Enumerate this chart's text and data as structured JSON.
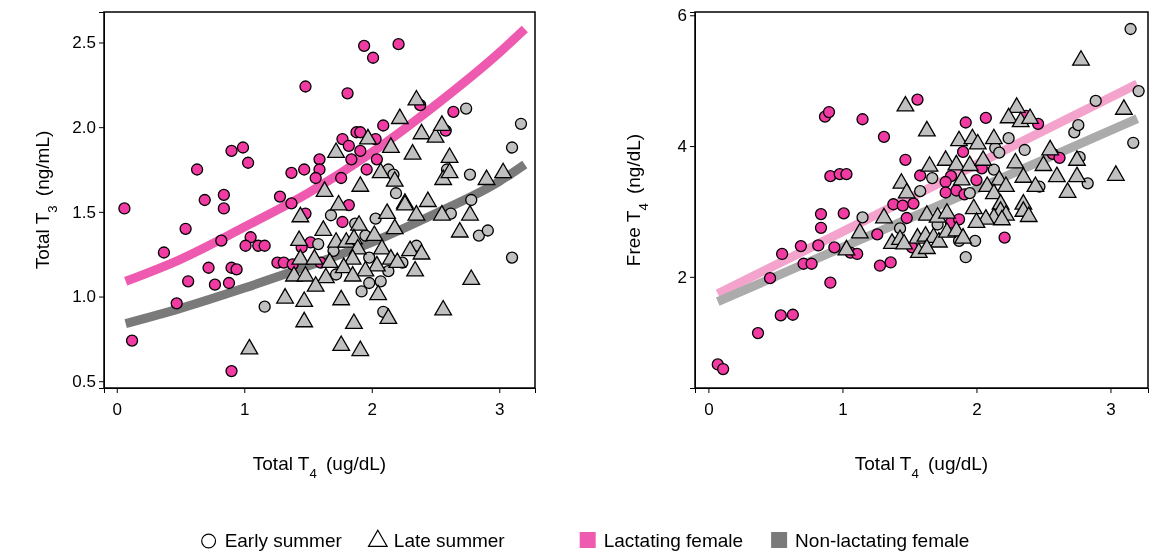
{
  "chart_data": [
    {
      "type": "scatter",
      "xlabel": "Total T$_{4}$ (ug/dL)",
      "ylabel": "Total T$_{3}$ (ng/mL)",
      "xlim": [
        -0.1,
        3.28
      ],
      "ylim": [
        0.46,
        2.68
      ],
      "xticks": [
        0,
        1,
        2,
        3
      ],
      "yticks": [
        {
          "value": 0.5,
          "label": "0.5"
        },
        {
          "value": 1.0,
          "label": "1.0"
        },
        {
          "value": 1.5,
          "label": "1.5"
        },
        {
          "value": 2.0,
          "label": "2.0"
        },
        {
          "value": 2.5,
          "label": "2.5"
        }
      ],
      "legend": "bottom",
      "series": [
        {
          "name": "Early summer",
          "marker": "circle",
          "x": [
            1.94,
            2.21,
            2.01,
            1.48,
            1.81,
            2.38,
            2.64,
            2.58,
            2.09,
            1.88,
            1.91,
            2.03,
            1.77,
            1.82,
            1.91,
            0.9,
            0.99,
            1.03,
            1.59,
            1.84,
            2.04,
            0.63,
            1.47,
            1.59,
            1.37,
            1.56,
            1.76,
            1.96,
            0.69,
            0.84,
            1.28,
            1.37,
            0.06,
            0.84,
            1.82,
            1.48,
            1.77,
            0.54,
            1.05,
            1.01,
            1.11,
            1.16,
            0.82,
            1.52,
            1.45,
            0.37,
            1.26,
            1.31,
            1.38,
            1.6,
            0.72,
            0.9,
            0.94,
            0.56,
            0.77,
            0.88,
            0.47,
            0.12,
            0.9,
            2.74,
            2.13,
            2.17,
            2.77,
            2.59,
            2.19,
            2.78,
            1.68,
            2.03,
            2.62,
            2.84,
            2.91,
            1.87,
            1.95,
            1.58,
            1.7,
            1.98,
            2.13,
            1.72,
            1.98,
            2.07,
            1.92,
            1.16,
            2.09,
            2.35,
            2.24,
            3.17,
            3.1,
            3.1
          ],
          "values": [
            2.48,
            2.49,
            2.41,
            2.24,
            2.2,
            2.13,
            2.09,
            1.98,
            2.01,
            1.97,
            1.97,
            1.93,
            1.93,
            1.89,
            1.86,
            1.86,
            1.88,
            1.79,
            1.81,
            1.81,
            1.81,
            1.75,
            1.75,
            1.75,
            1.73,
            1.7,
            1.7,
            1.75,
            1.57,
            1.6,
            1.59,
            1.55,
            1.52,
            1.52,
            1.54,
            1.49,
            1.44,
            1.4,
            1.35,
            1.3,
            1.3,
            1.3,
            1.33,
            1.32,
            1.29,
            1.26,
            1.2,
            1.2,
            1.19,
            1.2,
            1.17,
            1.17,
            1.16,
            1.09,
            1.07,
            1.08,
            0.96,
            0.74,
            0.56,
            2.11,
            1.75,
            1.72,
            1.72,
            1.75,
            1.61,
            1.57,
            1.48,
            1.46,
            1.49,
            1.36,
            1.39,
            1.43,
            1.36,
            1.31,
            1.27,
            1.23,
            1.15,
            1.13,
            1.08,
            1.09,
            1.03,
            0.94,
            0.91,
            1.3,
            1.2,
            2.02,
            1.88,
            1.23
          ],
          "colors": [
            "#f23aa3",
            "#f23aa3",
            "#f23aa3",
            "#f23aa3",
            "#f23aa3",
            "#f23aa3",
            "#f23aa3",
            "#f23aa3",
            "#f23aa3",
            "#f23aa3",
            "#f23aa3",
            "#f23aa3",
            "#f23aa3",
            "#f23aa3",
            "#f23aa3",
            "#f23aa3",
            "#f23aa3",
            "#f23aa3",
            "#f23aa3",
            "#f23aa3",
            "#f23aa3",
            "#f23aa3",
            "#f23aa3",
            "#f23aa3",
            "#f23aa3",
            "#f23aa3",
            "#f23aa3",
            "#f23aa3",
            "#f23aa3",
            "#f23aa3",
            "#f23aa3",
            "#f23aa3",
            "#f23aa3",
            "#f23aa3",
            "#f23aa3",
            "#f23aa3",
            "#f23aa3",
            "#f23aa3",
            "#f23aa3",
            "#f23aa3",
            "#f23aa3",
            "#f23aa3",
            "#f23aa3",
            "#f23aa3",
            "#f23aa3",
            "#f23aa3",
            "#f23aa3",
            "#f23aa3",
            "#f23aa3",
            "#f23aa3",
            "#f23aa3",
            "#f23aa3",
            "#f23aa3",
            "#f23aa3",
            "#f23aa3",
            "#f23aa3",
            "#f23aa3",
            "#f23aa3",
            "#f23aa3",
            "#c0c0c0",
            "#c0c0c0",
            "#c0c0c0",
            "#c0c0c0",
            "#c0c0c0",
            "#c0c0c0",
            "#c0c0c0",
            "#c0c0c0",
            "#c0c0c0",
            "#c0c0c0",
            "#c0c0c0",
            "#c0c0c0",
            "#c0c0c0",
            "#c0c0c0",
            "#c0c0c0",
            "#c0c0c0",
            "#c0c0c0",
            "#c0c0c0",
            "#c0c0c0",
            "#c0c0c0",
            "#c0c0c0",
            "#c0c0c0",
            "#c0c0c0",
            "#c0c0c0",
            "#c0c0c0",
            "#c0c0c0",
            "#c0c0c0",
            "#c0c0c0",
            "#c0c0c0"
          ]
        },
        {
          "name": "Late summer",
          "marker": "triangle",
          "color": "#c0c0c0",
          "x": [
            2.35,
            2.22,
            1.97,
            2.15,
            2.39,
            2.5,
            2.55,
            1.72,
            2.32,
            2.61,
            2.07,
            2.18,
            2.56,
            2.61,
            1.91,
            1.63,
            2.26,
            2.44,
            1.74,
            1.44,
            2.12,
            2.26,
            2.35,
            2.55,
            2.77,
            1.62,
            1.9,
            2.02,
            2.18,
            2.69,
            1.43,
            1.72,
            1.8,
            1.86,
            1.89,
            2.08,
            2.3,
            2.39,
            1.44,
            1.55,
            1.67,
            1.85,
            2.04,
            2.15,
            2.2,
            1.78,
            1.95,
            2.34,
            1.39,
            1.48,
            1.64,
            1.85,
            2.78,
            1.56,
            2.05,
            1.32,
            1.47,
            1.76,
            2.56,
            2.13,
            1.47,
            1.86,
            1.04,
            1.76,
            1.91,
            3.03,
            2.9
          ],
          "values": [
            2.16,
            2.05,
            1.93,
            1.88,
            1.96,
            1.94,
            2.01,
            1.85,
            1.84,
            1.82,
            1.73,
            1.68,
            1.69,
            1.73,
            1.65,
            1.62,
            1.55,
            1.56,
            1.54,
            1.47,
            1.49,
            1.54,
            1.48,
            1.48,
            1.48,
            1.39,
            1.42,
            1.36,
            1.4,
            1.38,
            1.33,
            1.32,
            1.32,
            1.34,
            1.28,
            1.28,
            1.27,
            1.25,
            1.22,
            1.22,
            1.2,
            1.22,
            1.18,
            1.22,
            1.2,
            1.17,
            1.15,
            1.15,
            1.12,
            1.12,
            1.11,
            1.12,
            1.1,
            1.06,
            1.01,
            0.99,
            0.97,
            0.98,
            0.92,
            0.87,
            0.85,
            0.84,
            0.69,
            0.71,
            0.68,
            1.73,
            1.69
          ]
        },
        {
          "name": "Lactating female",
          "type": "line",
          "color": "#ee5aaf",
          "x": [
            0.07,
            0.5,
            1,
            1.5,
            2,
            2.5,
            3,
            3.2
          ],
          "values": [
            1.09,
            1.22,
            1.41,
            1.61,
            1.85,
            2.13,
            2.44,
            2.58
          ]
        },
        {
          "name": "Non-lactating female",
          "type": "line",
          "color": "#7a7a7a",
          "x": [
            0.07,
            0.5,
            1,
            1.5,
            2,
            2.5,
            3,
            3.2
          ],
          "values": [
            0.84,
            0.93,
            1.05,
            1.18,
            1.32,
            1.49,
            1.68,
            1.78
          ]
        }
      ]
    },
    {
      "type": "scatter",
      "xlabel": "Total T$_{4}$ (ug/dL)",
      "ylabel": "Free T$_{4}$ (ng/dL)",
      "xlim": [
        -0.1,
        3.28
      ],
      "ylim": [
        0.3,
        6.05
      ],
      "xticks": [
        0,
        1,
        2,
        3
      ],
      "yticks": [
        2,
        4,
        6
      ],
      "series": [
        {
          "marker": "circle",
          "x": [
            0.87,
            0.9,
            1.15,
            1.56,
            1.31,
            1.92,
            2.07,
            2.37,
            2.46,
            0.91,
            0.98,
            1.03,
            1.47,
            1.9,
            1.58,
            1.81,
            1.77,
            2.04,
            2.57,
            2.62,
            2.0,
            1.85,
            1.77,
            1.91,
            1.38,
            1.45,
            1.53,
            0.84,
            1.01,
            0.84,
            0.69,
            0.82,
            0.55,
            1.06,
            1.11,
            1.26,
            1.28,
            1.36,
            0.91,
            0.54,
            0.63,
            0.37,
            0.07,
            0.11,
            2.21,
            1.52,
            1.81,
            1.87,
            1.48,
            0.46,
            0.71,
            0.77,
            0.94,
            3.15,
            3.21,
            2.89,
            2.73,
            2.76,
            3.17,
            2.24,
            2.14,
            2.17,
            2.36,
            2.77,
            2.83,
            2.47,
            1.67,
            1.58,
            2.13,
            1.95,
            1.15,
            1.43,
            1.71,
            1.87,
            1.99,
            1.92
          ],
          "values": [
            4.45,
            4.52,
            4.41,
            4.71,
            4.14,
            4.36,
            4.43,
            4.46,
            4.34,
            3.54,
            3.57,
            3.57,
            3.79,
            3.91,
            3.55,
            3.54,
            3.45,
            3.66,
            3.88,
            3.82,
            3.48,
            3.32,
            3.29,
            3.26,
            3.11,
            3.09,
            3.12,
            2.96,
            2.97,
            2.75,
            2.47,
            2.48,
            2.35,
            2.37,
            2.35,
            2.65,
            2.17,
            2.22,
            1.91,
            1.41,
            1.42,
            1.14,
            0.66,
            0.59,
            2.6,
            2.45,
            2.83,
            2.88,
            2.9,
            1.98,
            2.2,
            2.2,
            2.45,
            5.79,
            4.84,
            4.69,
            4.21,
            4.32,
            4.05,
            4.12,
            3.97,
            3.9,
            3.94,
            3.83,
            3.43,
            3.38,
            3.51,
            3.31,
            3.64,
            3.28,
            2.91,
            2.74,
            2.8,
            2.55,
            2.55,
            2.3
          ],
          "colors": [
            "#f23aa3",
            "#f23aa3",
            "#f23aa3",
            "#f23aa3",
            "#f23aa3",
            "#f23aa3",
            "#f23aa3",
            "#f23aa3",
            "#f23aa3",
            "#f23aa3",
            "#f23aa3",
            "#f23aa3",
            "#f23aa3",
            "#f23aa3",
            "#f23aa3",
            "#f23aa3",
            "#f23aa3",
            "#f23aa3",
            "#f23aa3",
            "#f23aa3",
            "#f23aa3",
            "#f23aa3",
            "#f23aa3",
            "#f23aa3",
            "#f23aa3",
            "#f23aa3",
            "#f23aa3",
            "#f23aa3",
            "#f23aa3",
            "#f23aa3",
            "#f23aa3",
            "#f23aa3",
            "#f23aa3",
            "#f23aa3",
            "#f23aa3",
            "#f23aa3",
            "#f23aa3",
            "#f23aa3",
            "#f23aa3",
            "#f23aa3",
            "#f23aa3",
            "#f23aa3",
            "#f23aa3",
            "#f23aa3",
            "#f23aa3",
            "#f23aa3",
            "#f23aa3",
            "#f23aa3",
            "#f23aa3",
            "#f23aa3",
            "#f23aa3",
            "#f23aa3",
            "#f23aa3",
            "#c0c0c0",
            "#c0c0c0",
            "#c0c0c0",
            "#c0c0c0",
            "#c0c0c0",
            "#c0c0c0",
            "#c0c0c0",
            "#c0c0c0",
            "#c0c0c0",
            "#c0c0c0",
            "#c0c0c0",
            "#c0c0c0",
            "#c0c0c0",
            "#c0c0c0",
            "#c0c0c0",
            "#c0c0c0",
            "#c0c0c0",
            "#c0c0c0",
            "#c0c0c0",
            "#c0c0c0",
            "#c0c0c0",
            "#c0c0c0",
            "#c0c0c0"
          ]
        },
        {
          "marker": "triangle",
          "color": "#c0c0c0",
          "x": [
            2.78,
            1.47,
            1.63,
            2.3,
            2.24,
            2.33,
            2.4,
            1.87,
            1.97,
            2.01,
            2.13,
            2.55,
            3.1,
            1.77,
            1.65,
            1.85,
            1.95,
            2.05,
            2.29,
            2.5,
            2.75,
            3.04,
            2.75,
            2.6,
            2.35,
            1.44,
            1.89,
            2.17,
            2.44,
            2.22,
            2.08,
            1.48,
            2.68,
            2.13,
            2.35,
            2.18,
            1.31,
            1.13,
            1.03,
            1.63,
            1.71,
            1.98,
            2.35,
            2.39,
            2.18,
            2.22,
            2.13,
            2.07,
            2.0,
            2.19,
            1.37,
            1.43,
            1.46,
            1.56,
            1.62,
            1.68,
            1.72,
            1.57,
            1.63,
            1.78,
            1.85,
            1.9,
            1.78
          ],
          "values": [
            5.31,
            4.61,
            4.23,
            4.59,
            4.43,
            4.37,
            4.42,
            4.08,
            4.11,
            4.03,
            4.11,
            3.94,
            4.56,
            3.78,
            3.69,
            3.71,
            3.7,
            3.78,
            3.74,
            3.7,
            3.78,
            3.55,
            3.53,
            3.53,
            3.52,
            3.43,
            3.48,
            3.48,
            3.38,
            3.38,
            3.38,
            3.28,
            3.29,
            3.27,
            3.11,
            3.11,
            2.9,
            2.67,
            2.41,
            2.94,
            2.91,
            3.04,
            3.0,
            2.92,
            3.0,
            2.94,
            2.9,
            2.88,
            2.83,
            2.87,
            2.51,
            2.57,
            2.5,
            2.59,
            2.62,
            2.6,
            2.53,
            2.37,
            2.43,
            2.68,
            2.7,
            2.59,
            2.97
          ]
        },
        {
          "type": "line",
          "color": "#f4a3cd",
          "x": [
            0.07,
            1,
            2,
            3.2
          ],
          "values": [
            1.74,
            2.69,
            3.72,
            4.95
          ]
        },
        {
          "type": "line",
          "color": "#ababab",
          "x": [
            0.07,
            1,
            2,
            3.2
          ],
          "values": [
            1.62,
            2.45,
            3.34,
            4.42
          ]
        }
      ]
    }
  ]
}
